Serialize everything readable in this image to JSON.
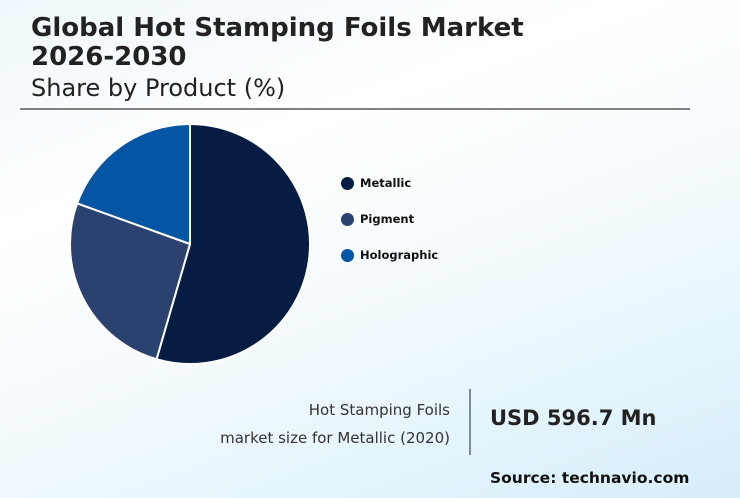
{
  "header": {
    "title_line1": "Global Hot Stamping Foils Market",
    "title_line2": "2026-2030",
    "subtitle": "Share by Product (%)"
  },
  "legend": [
    {
      "label": "Metallic",
      "color": "#071c42"
    },
    {
      "label": "Pigment",
      "color": "#2b4170"
    },
    {
      "label": "Holographic",
      "color": "#0455a3"
    }
  ],
  "footer": {
    "desc_line1": "Hot Stamping Foils",
    "desc_line2": "market size for Metallic (2020)",
    "value": "USD 596.7 Mn",
    "source": "Source: technavio.com"
  },
  "chart_data": {
    "type": "pie",
    "title": "Global Hot Stamping Foils Market 2026-2030",
    "subtitle": "Share by Product (%)",
    "categories": [
      "Metallic",
      "Pigment",
      "Holographic"
    ],
    "values": [
      54.5,
      26.0,
      19.5
    ],
    "colors": [
      "#071c42",
      "#2b4170",
      "#0455a3"
    ],
    "start_angle": "12 o'clock, clockwise",
    "legend_position": "right",
    "annotation": "Hot Stamping Foils market size for Metallic (2020): USD 596.7 Mn"
  }
}
